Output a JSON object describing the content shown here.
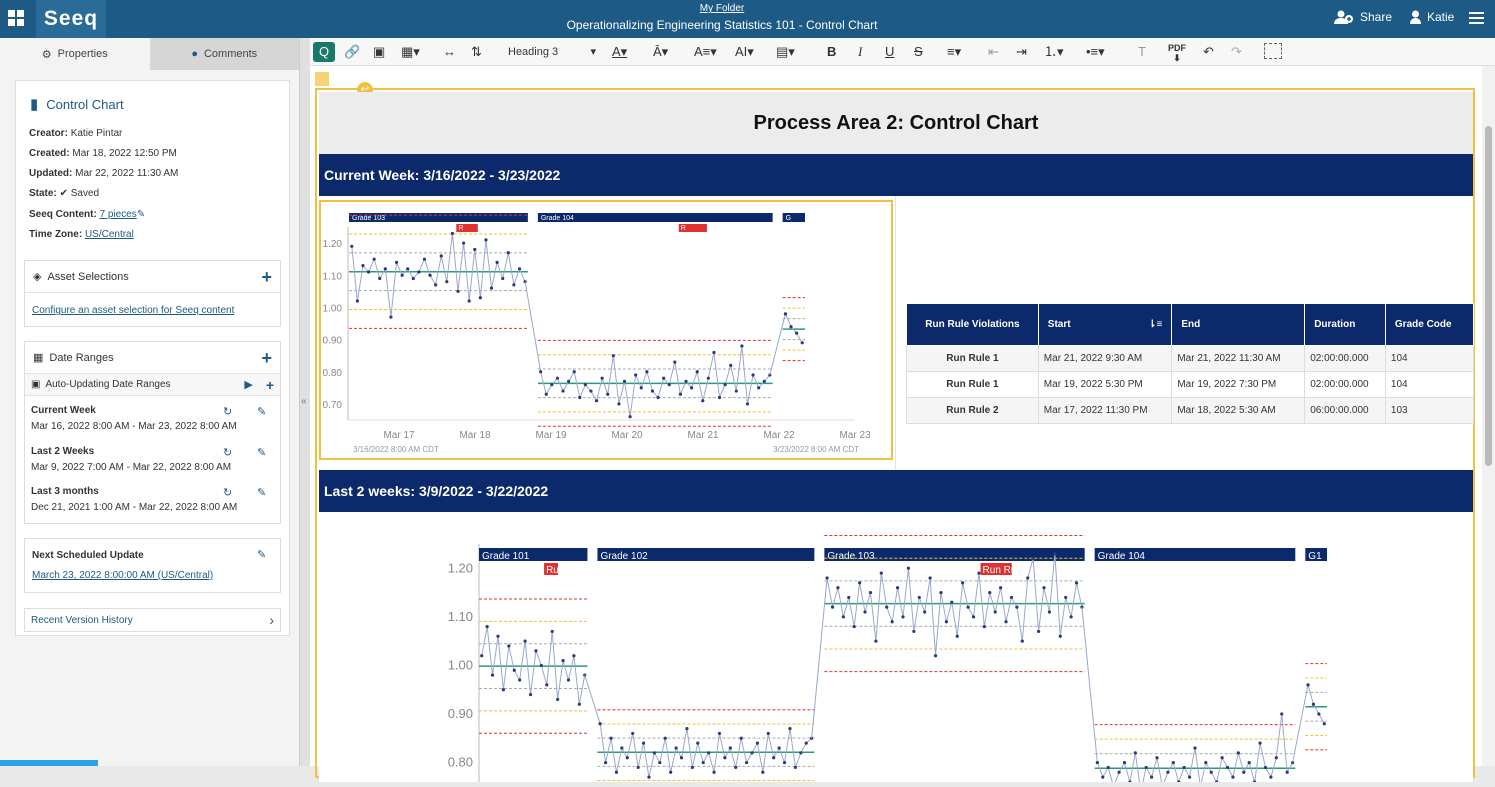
{
  "app": {
    "logo": "Seeq",
    "folder": "My Folder",
    "title": "Operationalizing Engineering Statistics 101 - Control Chart",
    "share": "Share",
    "user": "Katie"
  },
  "tabs": {
    "properties": "Properties",
    "comments": "Comments"
  },
  "properties": {
    "title": "Control Chart",
    "creator_label": "Creator:",
    "creator": "Katie Pintar",
    "created_label": "Created:",
    "created": "Mar 18, 2022 12:50 PM",
    "updated_label": "Updated:",
    "updated": "Mar 22, 2022 11:30 AM",
    "state_label": "State:",
    "state": "Saved",
    "content_label": "Seeq Content:",
    "content": "7 pieces",
    "tz_label": "Time Zone:",
    "tz": "US/Central"
  },
  "assets": {
    "title": "Asset Selections",
    "link": "Configure an asset selection for Seeq content"
  },
  "dates": {
    "title": "Date Ranges",
    "auto": "Auto-Updating Date Ranges",
    "items": [
      {
        "name": "Current Week",
        "range": "Mar 16, 2022 8:00 AM - Mar 23, 2022 8:00 AM"
      },
      {
        "name": "Last 2 Weeks",
        "range": "Mar 9, 2022 7:00 AM - Mar 22, 2022 8:00 AM"
      },
      {
        "name": "Last 3 months",
        "range": "Dec 21, 2021 1:00 AM - Mar 22, 2022 8:00 AM"
      }
    ]
  },
  "schedule": {
    "title": "Next Scheduled Update",
    "value": "March 23, 2022 8:00:00 AM (US/Central)"
  },
  "history": {
    "title": "Recent Version History"
  },
  "toolbar": {
    "heading": "Heading 3",
    "pdf": "PDF"
  },
  "doc": {
    "heading": "Process Area 2: Control Chart",
    "band1": "Current Week: 3/16/2022 - 3/23/2022",
    "band2": "Last 2 weeks: 3/9/2022 - 3/22/2022"
  },
  "table": {
    "headers": [
      "Run Rule Violations",
      "Start",
      "End",
      "Duration",
      "Grade Code"
    ],
    "rows": [
      [
        "Run Rule 1",
        "Mar 21, 2022 9:30 AM",
        "Mar 21, 2022 11:30 AM",
        "02:00:00.000",
        "104"
      ],
      [
        "Run Rule 1",
        "Mar 19, 2022 5:30 PM",
        "Mar 19, 2022 7:30 PM",
        "02:00:00.000",
        "104"
      ],
      [
        "Run Rule 2",
        "Mar 17, 2022 11:30 PM",
        "Mar 18, 2022 5:30 AM",
        "06:00:00.000",
        "103"
      ]
    ]
  },
  "chart_data": [
    {
      "type": "line",
      "y_ticks": [
        "1.20",
        "1.10",
        "1.00",
        "0.90",
        "0.80",
        "0.70"
      ],
      "ylim": [
        0.65,
        1.25
      ],
      "x_ticks": [
        "Mar 17",
        "Mar 18",
        "Mar 19",
        "Mar 20",
        "Mar 21",
        "Mar 22",
        "Mar 23"
      ],
      "range_start": "3/16/2022 8:00 AM  CDT",
      "range_end": "3/23/2022 8:00 AM  CDT",
      "grades": [
        "Grade 103",
        "Grade 104",
        "G"
      ],
      "violation_label": "R",
      "segments": [
        {
          "grade": "Grade 103",
          "values": [
            1.19,
            1.02,
            1.13,
            1.11,
            1.15,
            1.09,
            1.12,
            0.97,
            1.14,
            1.1,
            1.12,
            1.09,
            1.11,
            1.15,
            1.1,
            1.07,
            1.16,
            1.08,
            1.23,
            1.05,
            1.2,
            1.02,
            1.18,
            1.03,
            1.21,
            1.06,
            1.14,
            1.09,
            1.17,
            1.07,
            1.12,
            1.08
          ]
        },
        {
          "grade": "Grade 104",
          "values": [
            0.8,
            0.73,
            0.76,
            0.78,
            0.74,
            0.77,
            0.8,
            0.72,
            0.76,
            0.74,
            0.71,
            0.78,
            0.73,
            0.85,
            0.7,
            0.77,
            0.66,
            0.79,
            0.75,
            0.8,
            0.74,
            0.72,
            0.78,
            0.76,
            0.83,
            0.73,
            0.77,
            0.75,
            0.8,
            0.71,
            0.78,
            0.86,
            0.72,
            0.76,
            0.82,
            0.74,
            0.88,
            0.7,
            0.79,
            0.75,
            0.77,
            0.79
          ]
        },
        {
          "grade": "G",
          "values": [
            0.98,
            0.94,
            0.92,
            0.89
          ]
        }
      ]
    },
    {
      "type": "line",
      "y_ticks": [
        "1.20",
        "1.10",
        "1.00",
        "0.90",
        "0.80"
      ],
      "ylim": [
        0.76,
        1.25
      ],
      "grades": [
        "Grade 101",
        "Grade 102",
        "Grade 103",
        "Grade 104",
        "G1"
      ],
      "violation_label": "Run Rul...",
      "segments": [
        {
          "grade": "Grade 101",
          "values": [
            1.02,
            1.08,
            0.98,
            1.06,
            0.95,
            1.04,
            0.99,
            0.97,
            1.05,
            0.94,
            1.03,
            1.0,
            0.96,
            1.07,
            0.93,
            1.01,
            0.97,
            1.02,
            0.92,
            0.98
          ]
        },
        {
          "grade": "Grade 102",
          "values": [
            0.88,
            0.8,
            0.85,
            0.78,
            0.83,
            0.81,
            0.86,
            0.79,
            0.84,
            0.77,
            0.82,
            0.8,
            0.85,
            0.78,
            0.83,
            0.81,
            0.87,
            0.79,
            0.84,
            0.8,
            0.82,
            0.78,
            0.86,
            0.81,
            0.83,
            0.79,
            0.85,
            0.8,
            0.82,
            0.84,
            0.78,
            0.86,
            0.81,
            0.83,
            0.8,
            0.87,
            0.79,
            0.82,
            0.84,
            0.85
          ]
        },
        {
          "grade": "Grade 103",
          "values": [
            1.18,
            1.12,
            1.16,
            1.1,
            1.14,
            1.08,
            1.17,
            1.11,
            1.15,
            1.05,
            1.19,
            1.12,
            1.09,
            1.16,
            1.1,
            1.2,
            1.07,
            1.14,
            1.11,
            1.18,
            1.02,
            1.15,
            1.09,
            1.13,
            1.06,
            1.17,
            1.12,
            1.1,
            1.19,
            1.08,
            1.15,
            1.11,
            1.16,
            1.09,
            1.14,
            1.12,
            1.05,
            1.18,
            1.22,
            1.07,
            1.16,
            1.11,
            1.23,
            1.06,
            1.14,
            1.1,
            1.17,
            1.12
          ]
        },
        {
          "grade": "Grade 104",
          "values": [
            0.8,
            0.77,
            0.79,
            0.75,
            0.78,
            0.8,
            0.76,
            0.82,
            0.74,
            0.79,
            0.77,
            0.81,
            0.75,
            0.78,
            0.8,
            0.76,
            0.79,
            0.77,
            0.83,
            0.75,
            0.8,
            0.78,
            0.76,
            0.81,
            0.79,
            0.77,
            0.82,
            0.78,
            0.8,
            0.76,
            0.84,
            0.79,
            0.77,
            0.81,
            0.9,
            0.78,
            0.8
          ]
        },
        {
          "grade": "G1",
          "values": [
            0.96,
            0.92,
            0.9,
            0.88
          ]
        }
      ]
    }
  ]
}
